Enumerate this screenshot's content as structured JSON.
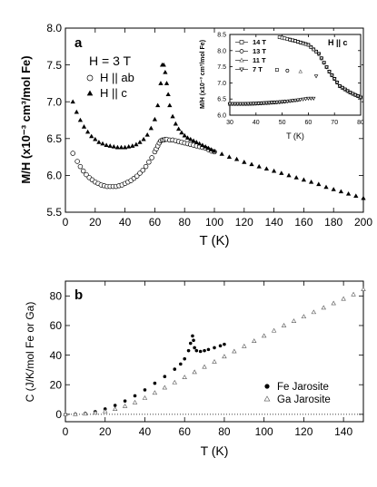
{
  "chart_data": [
    {
      "panel": "a",
      "type": "scatter",
      "title": "",
      "xlabel": "T (K)",
      "ylabel": "M/H (x10⁻³ cm³/mol Fe)",
      "xlim": [
        0,
        200
      ],
      "ylim": [
        5.5,
        8.0
      ],
      "xticks": [
        "0",
        "20",
        "40",
        "60",
        "80",
        "100",
        "120",
        "140",
        "160",
        "180",
        "200"
      ],
      "yticks": [
        "5.5",
        "6.0",
        "6.5",
        "7.0",
        "7.5",
        "8.0"
      ],
      "annotation": "H = 3 T",
      "legend_position": "top-left",
      "series": [
        {
          "name": "H || ab",
          "marker": "open-circle",
          "points": [
            [
              5,
              6.3
            ],
            [
              8,
              6.19
            ],
            [
              10,
              6.12
            ],
            [
              12,
              6.06
            ],
            [
              14,
              6.01
            ],
            [
              16,
              5.97
            ],
            [
              18,
              5.94
            ],
            [
              20,
              5.91
            ],
            [
              22,
              5.89
            ],
            [
              24,
              5.87
            ],
            [
              26,
              5.86
            ],
            [
              28,
              5.85
            ],
            [
              30,
              5.85
            ],
            [
              32,
              5.85
            ],
            [
              34,
              5.85
            ],
            [
              36,
              5.86
            ],
            [
              38,
              5.87
            ],
            [
              40,
              5.89
            ],
            [
              42,
              5.91
            ],
            [
              44,
              5.93
            ],
            [
              46,
              5.96
            ],
            [
              48,
              5.99
            ],
            [
              50,
              6.03
            ],
            [
              52,
              6.07
            ],
            [
              54,
              6.12
            ],
            [
              56,
              6.18
            ],
            [
              58,
              6.24
            ],
            [
              60,
              6.32
            ],
            [
              61,
              6.36
            ],
            [
              62,
              6.4
            ],
            [
              63,
              6.44
            ],
            [
              64,
              6.47
            ],
            [
              65,
              6.48
            ],
            [
              66,
              6.48
            ],
            [
              67,
              6.49
            ],
            [
              68,
              6.49
            ],
            [
              70,
              6.48
            ],
            [
              72,
              6.48
            ],
            [
              74,
              6.47
            ],
            [
              76,
              6.46
            ],
            [
              78,
              6.45
            ],
            [
              80,
              6.44
            ],
            [
              82,
              6.43
            ],
            [
              84,
              6.42
            ],
            [
              86,
              6.41
            ],
            [
              88,
              6.4
            ],
            [
              90,
              6.39
            ],
            [
              92,
              6.38
            ],
            [
              94,
              6.37
            ],
            [
              96,
              6.35
            ],
            [
              98,
              6.33
            ],
            [
              100,
              6.32
            ]
          ]
        },
        {
          "name": "H || c",
          "marker": "filled-triangle",
          "points": [
            [
              5,
              7.0
            ],
            [
              7.5,
              6.86
            ],
            [
              10,
              6.75
            ],
            [
              12.5,
              6.66
            ],
            [
              15,
              6.59
            ],
            [
              17.5,
              6.53
            ],
            [
              20,
              6.49
            ],
            [
              22.5,
              6.45
            ],
            [
              25,
              6.43
            ],
            [
              27.5,
              6.41
            ],
            [
              30,
              6.4
            ],
            [
              32.5,
              6.39
            ],
            [
              35,
              6.38
            ],
            [
              37.5,
              6.38
            ],
            [
              40,
              6.38
            ],
            [
              42.5,
              6.39
            ],
            [
              45,
              6.4
            ],
            [
              47.5,
              6.42
            ],
            [
              50,
              6.45
            ],
            [
              52.5,
              6.49
            ],
            [
              55,
              6.55
            ],
            [
              57.5,
              6.64
            ],
            [
              60,
              6.76
            ],
            [
              62,
              6.95
            ],
            [
              64,
              7.25
            ],
            [
              65,
              7.5
            ],
            [
              66,
              7.5
            ],
            [
              67,
              7.4
            ],
            [
              68,
              7.25
            ],
            [
              69,
              7.1
            ],
            [
              70,
              6.95
            ],
            [
              72,
              6.8
            ],
            [
              74,
              6.7
            ],
            [
              76,
              6.63
            ],
            [
              78,
              6.58
            ],
            [
              80,
              6.54
            ],
            [
              82,
              6.51
            ],
            [
              84,
              6.49
            ],
            [
              86,
              6.47
            ],
            [
              88,
              6.45
            ],
            [
              90,
              6.43
            ],
            [
              92,
              6.41
            ],
            [
              94,
              6.39
            ],
            [
              96,
              6.37
            ],
            [
              98,
              6.35
            ],
            [
              100,
              6.33
            ],
            [
              105,
              6.29
            ],
            [
              110,
              6.25
            ],
            [
              115,
              6.22
            ],
            [
              120,
              6.18
            ],
            [
              125,
              6.15
            ],
            [
              130,
              6.12
            ],
            [
              135,
              6.09
            ],
            [
              140,
              6.06
            ],
            [
              145,
              6.03
            ],
            [
              150,
              6.0
            ],
            [
              155,
              5.97
            ],
            [
              160,
              5.94
            ],
            [
              165,
              5.91
            ],
            [
              170,
              5.88
            ],
            [
              175,
              5.84
            ],
            [
              180,
              5.81
            ],
            [
              185,
              5.78
            ],
            [
              190,
              5.75
            ],
            [
              195,
              5.72
            ],
            [
              200,
              5.69
            ]
          ]
        }
      ]
    },
    {
      "panel": "inset",
      "type": "scatter",
      "title": "H || c",
      "xlabel": "T (K)",
      "ylabel": "M/H (x10⁻³ cm³/mol Fe)",
      "xlim": [
        30,
        80
      ],
      "ylim": [
        6.0,
        8.5
      ],
      "xticks": [
        "30",
        "40",
        "50",
        "60",
        "70",
        "80"
      ],
      "yticks": [
        "6.0",
        "6.5",
        "7.0",
        "7.5",
        "8.0",
        "8.5"
      ],
      "legend_position": "top-left",
      "series": [
        {
          "name": "14 T",
          "marker": "open-square",
          "transition": 48
        },
        {
          "name": "13 T",
          "marker": "open-circle",
          "transition": 52
        },
        {
          "name": "11 T",
          "marker": "open-triangle",
          "transition": 57
        },
        {
          "name": "7 T",
          "marker": "open-down-triangle",
          "transition": 63
        }
      ],
      "base_points": [
        [
          30,
          6.35
        ],
        [
          35,
          6.35
        ],
        [
          40,
          6.36
        ],
        [
          44,
          6.38
        ],
        [
          48,
          6.4
        ],
        [
          52,
          6.43
        ],
        [
          56,
          6.47
        ],
        [
          60,
          6.52
        ]
      ],
      "high_points": [
        [
          46,
          8.45
        ],
        [
          50,
          8.4
        ],
        [
          55,
          8.3
        ],
        [
          60,
          8.18
        ],
        [
          64,
          7.9
        ],
        [
          68,
          7.35
        ],
        [
          72,
          6.9
        ],
        [
          76,
          6.7
        ],
        [
          80,
          6.55
        ]
      ]
    },
    {
      "panel": "b",
      "type": "scatter",
      "title": "",
      "xlabel": "T (K)",
      "ylabel": "C (J/K/mol Fe or Ga)",
      "xlim": [
        0,
        150
      ],
      "ylim": [
        -5,
        90
      ],
      "xticks": [
        "0",
        "20",
        "40",
        "60",
        "80",
        "100",
        "120",
        "140"
      ],
      "yticks": [
        "0",
        "20",
        "40",
        "60",
        "80"
      ],
      "legend_position": "bottom-right",
      "series": [
        {
          "name": "Fe Jarosite",
          "marker": "filled-circle",
          "points": [
            [
              0,
              0
            ],
            [
              5,
              0.1
            ],
            [
              10,
              0.6
            ],
            [
              15,
              1.8
            ],
            [
              20,
              3.6
            ],
            [
              25,
              6.0
            ],
            [
              30,
              9.0
            ],
            [
              35,
              12.5
            ],
            [
              40,
              16.5
            ],
            [
              45,
              21.0
            ],
            [
              50,
              25.5
            ],
            [
              55,
              30.5
            ],
            [
              58,
              34.0
            ],
            [
              60,
              37.5
            ],
            [
              62,
              43.0
            ],
            [
              63,
              48.0
            ],
            [
              64,
              53.0
            ],
            [
              64.5,
              50.0
            ],
            [
              65,
              45.0
            ],
            [
              66,
              43.0
            ],
            [
              68,
              42.5
            ],
            [
              70,
              43.0
            ],
            [
              72,
              43.8
            ],
            [
              75,
              45.0
            ],
            [
              78,
              46.3
            ],
            [
              80,
              47.3
            ]
          ]
        },
        {
          "name": "Ga Jarosite",
          "marker": "open-triangle",
          "points": [
            [
              0,
              0
            ],
            [
              5,
              0.1
            ],
            [
              10,
              0.4
            ],
            [
              15,
              1.0
            ],
            [
              20,
              2.0
            ],
            [
              25,
              3.5
            ],
            [
              30,
              5.5
            ],
            [
              35,
              8.0
            ],
            [
              40,
              11.0
            ],
            [
              45,
              14.5
            ],
            [
              50,
              18.0
            ],
            [
              55,
              21.5
            ],
            [
              60,
              25.0
            ],
            [
              65,
              28.5
            ],
            [
              70,
              32.0
            ],
            [
              75,
              35.5
            ],
            [
              80,
              39.0
            ],
            [
              85,
              42.5
            ],
            [
              90,
              46.0
            ],
            [
              95,
              49.5
            ],
            [
              100,
              53.0
            ],
            [
              105,
              56.5
            ],
            [
              110,
              60.0
            ],
            [
              115,
              63.0
            ],
            [
              120,
              66.0
            ],
            [
              125,
              69.0
            ],
            [
              130,
              72.0
            ],
            [
              135,
              75.0
            ],
            [
              140,
              78.0
            ],
            [
              145,
              81.0
            ],
            [
              150,
              84.5
            ]
          ]
        }
      ],
      "reference_line_y": 0
    }
  ],
  "labels": {
    "panel_a": "a",
    "panel_b": "b",
    "field": "H = 3 T",
    "inset_title": "H || c"
  }
}
